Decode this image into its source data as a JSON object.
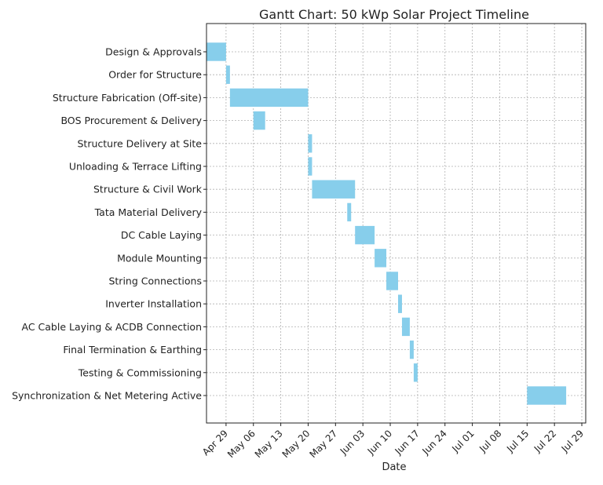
{
  "chart_data": {
    "type": "gantt",
    "title": "Gantt Chart: 50 kWp Solar Project Timeline",
    "xlabel": "Date",
    "ylabel": "",
    "xlim": [
      "2024-04-24",
      "2024-07-30"
    ],
    "x_ticks": [
      {
        "date": "2024-04-29",
        "label": "Apr 29"
      },
      {
        "date": "2024-05-06",
        "label": "May 06"
      },
      {
        "date": "2024-05-13",
        "label": "May 13"
      },
      {
        "date": "2024-05-20",
        "label": "May 20"
      },
      {
        "date": "2024-05-27",
        "label": "May 27"
      },
      {
        "date": "2024-06-03",
        "label": "Jun 03"
      },
      {
        "date": "2024-06-10",
        "label": "Jun 10"
      },
      {
        "date": "2024-06-17",
        "label": "Jun 17"
      },
      {
        "date": "2024-06-24",
        "label": "Jun 24"
      },
      {
        "date": "2024-07-01",
        "label": "Jul 01"
      },
      {
        "date": "2024-07-08",
        "label": "Jul 08"
      },
      {
        "date": "2024-07-15",
        "label": "Jul 15"
      },
      {
        "date": "2024-07-22",
        "label": "Jul 22"
      },
      {
        "date": "2024-07-29",
        "label": "Jul 29"
      }
    ],
    "grid": true,
    "bar_color": "#87ceeb",
    "tasks": [
      {
        "name": "Design & Approvals",
        "start": "2024-04-24",
        "end": "2024-04-29"
      },
      {
        "name": "Order for Structure",
        "start": "2024-04-29",
        "end": "2024-04-30"
      },
      {
        "name": "Structure Fabrication (Off-site)",
        "start": "2024-04-30",
        "end": "2024-05-20"
      },
      {
        "name": "BOS Procurement & Delivery",
        "start": "2024-05-06",
        "end": "2024-05-09"
      },
      {
        "name": "Structure Delivery at Site",
        "start": "2024-05-20",
        "end": "2024-05-21"
      },
      {
        "name": "Unloading & Terrace Lifting",
        "start": "2024-05-20",
        "end": "2024-05-21"
      },
      {
        "name": "Structure & Civil Work",
        "start": "2024-05-21",
        "end": "2024-06-01"
      },
      {
        "name": "Tata Material Delivery",
        "start": "2024-05-30",
        "end": "2024-05-31"
      },
      {
        "name": "DC Cable Laying",
        "start": "2024-06-01",
        "end": "2024-06-06"
      },
      {
        "name": "Module Mounting",
        "start": "2024-06-06",
        "end": "2024-06-09"
      },
      {
        "name": "String Connections",
        "start": "2024-06-09",
        "end": "2024-06-12"
      },
      {
        "name": "Inverter Installation",
        "start": "2024-06-12",
        "end": "2024-06-13"
      },
      {
        "name": "AC Cable Laying & ACDB Connection",
        "start": "2024-06-13",
        "end": "2024-06-15"
      },
      {
        "name": "Final Termination & Earthing",
        "start": "2024-06-15",
        "end": "2024-06-16"
      },
      {
        "name": "Testing & Commissioning",
        "start": "2024-06-16",
        "end": "2024-06-17"
      },
      {
        "name": "Synchronization & Net Metering Active",
        "start": "2024-07-15",
        "end": "2024-07-25"
      }
    ]
  }
}
